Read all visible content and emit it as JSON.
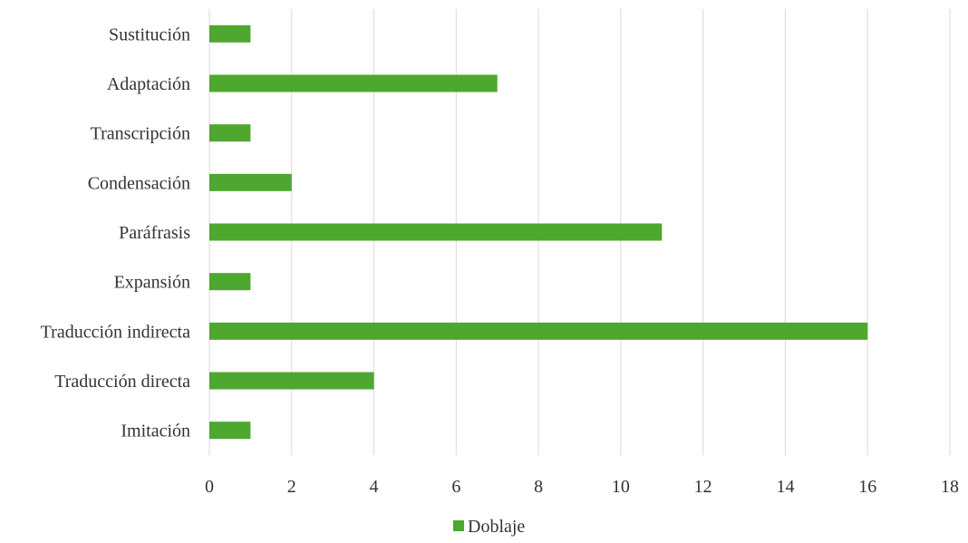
{
  "chart_data": {
    "type": "bar",
    "orientation": "horizontal",
    "categories": [
      "Imitación",
      "Traducción directa",
      "Traducción indirecta",
      "Expansión",
      "Paráfrasis",
      "Condensación",
      "Transcripción",
      "Adaptación",
      "Sustitución"
    ],
    "series": [
      {
        "name": "Doblaje",
        "values": [
          1,
          4,
          16,
          1,
          11,
          2,
          1,
          7,
          1
        ],
        "color": "#4ea72e"
      }
    ],
    "xlim": [
      0,
      18
    ],
    "x_ticks": [
      0,
      2,
      4,
      6,
      8,
      10,
      12,
      14,
      16,
      18
    ],
    "grid": "vertical",
    "grid_color": "#d9d9d9",
    "legend": "bottom"
  }
}
